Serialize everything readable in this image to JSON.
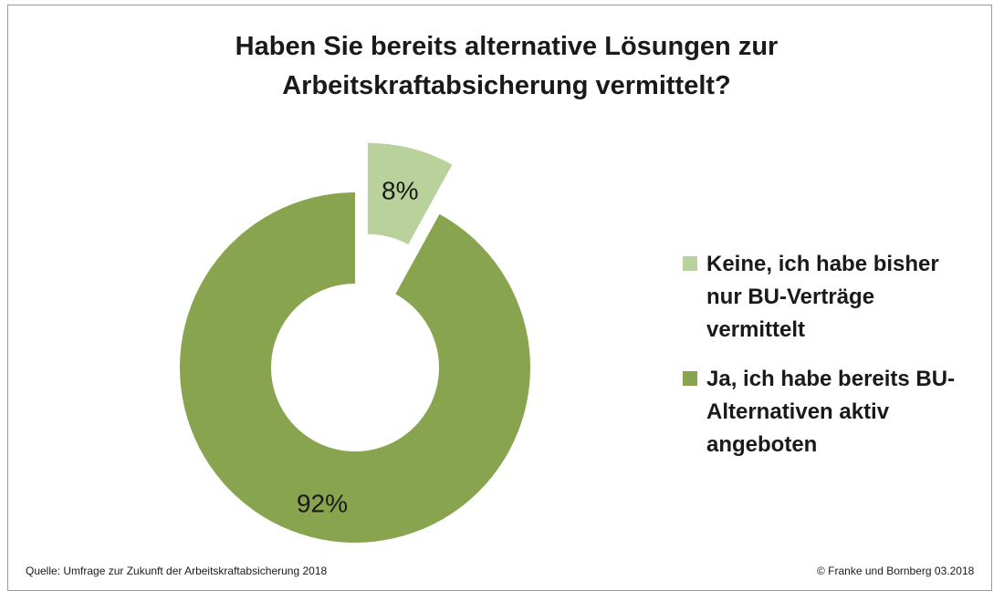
{
  "chart_data": {
    "type": "pie",
    "title_line1": "Haben Sie bereits alternative Lösungen zur",
    "title_line2": "Arbeitskraftabsicherung vermittelt?",
    "categories": [
      "Keine, ich habe bisher nur BU-Verträge vermittelt",
      "Ja, ich habe bereits BU-Alternativen aktiv angeboten"
    ],
    "values": [
      8,
      92
    ],
    "value_labels": [
      "8%",
      "92%"
    ],
    "colors": [
      "#b9d19a",
      "#88a44f"
    ],
    "legend_position": "right"
  },
  "legend": {
    "items": [
      {
        "lines": [
          "Keine, ich habe bisher",
          "nur BU-Verträge",
          "vermittelt"
        ],
        "color": "#b9d19a"
      },
      {
        "lines": [
          "Ja, ich habe bereits BU-",
          "Alternativen aktiv",
          "angeboten"
        ],
        "color": "#88a44f"
      }
    ]
  },
  "footer": {
    "source": "Quelle: Umfrage zur Zukunft der Arbeitskraftabsicherung 2018",
    "copyright": "© Franke und Bornberg 03.2018"
  }
}
